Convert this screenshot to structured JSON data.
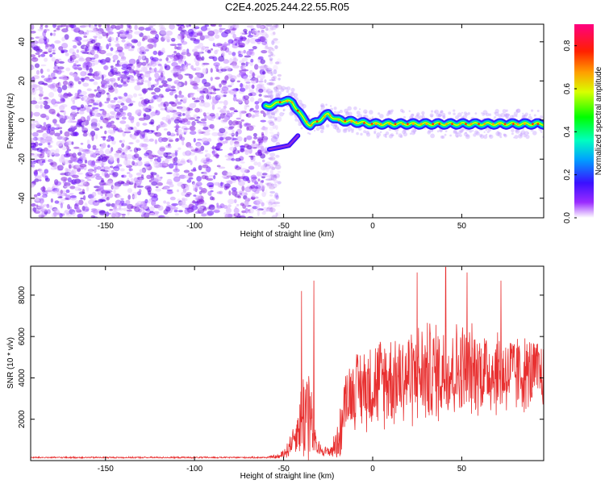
{
  "figure": {
    "title": "C2E4.2025.244.22.55.R05"
  },
  "chart_data": [
    {
      "type": "heatmap",
      "xlabel": "Height of straight line (km)",
      "ylabel": "Frequency (Hz)",
      "xlim": [
        -192,
        96
      ],
      "ylim": [
        -50,
        49
      ],
      "xticks": [
        -150,
        -100,
        -50,
        0,
        50
      ],
      "yticks": [
        -40,
        -20,
        0,
        20,
        40
      ],
      "noise_region_km": [
        -192,
        -55
      ],
      "clear_region_km": [
        -55,
        -60
      ],
      "ridge": {
        "description_points_x": [
          -60,
          -55,
          -50,
          -45,
          -40,
          -35,
          -30,
          -25,
          -20,
          -10,
          0,
          20,
          40,
          60,
          80,
          95
        ],
        "description_points_y": [
          7,
          8,
          10,
          9,
          2,
          -3,
          0,
          3,
          0,
          -1,
          -2,
          -2,
          -2,
          -2,
          -2,
          -2
        ]
      },
      "lower_branch": {
        "x": [
          -58,
          -52,
          -47,
          -42
        ],
        "y": [
          -15,
          -14,
          -13,
          -8
        ]
      },
      "colorbar": {
        "label": "Normalized spectral amplitude",
        "range": [
          0.0,
          0.9
        ],
        "ticks": [
          0.0,
          0.2,
          0.4,
          0.6,
          0.8
        ],
        "tick_labels": [
          "0.0",
          "0.2",
          "0.4",
          "0.6",
          "0.8"
        ]
      }
    },
    {
      "type": "line",
      "xlabel": "Height of straight line (km)",
      "ylabel": "SNR (10 * v/v)",
      "xlim": [
        -192,
        96
      ],
      "ylim": [
        0,
        9400
      ],
      "xticks": [
        -150,
        -100,
        -50,
        0,
        50
      ],
      "yticks": [
        2000,
        4000,
        6000,
        8000
      ],
      "series_color": "#e83030",
      "envelope": {
        "x": [
          -192,
          -60,
          -52,
          -48,
          -45,
          -42,
          -40,
          -38,
          -36,
          -35,
          -33,
          -31,
          -28,
          -25,
          -22,
          -20,
          -18,
          -16,
          -15,
          -14,
          -10,
          -5,
          0,
          10,
          20,
          30,
          40,
          50,
          60,
          70,
          80,
          90,
          96
        ],
        "base": [
          150,
          150,
          200,
          500,
          1000,
          1500,
          2000,
          2400,
          2600,
          2000,
          900,
          600,
          500,
          400,
          600,
          900,
          1400,
          2600,
          3200,
          3200,
          3400,
          3600,
          3700,
          4000,
          4100,
          4200,
          4300,
          4400,
          4400,
          4300,
          4200,
          4200,
          4200
        ],
        "amp": [
          40,
          40,
          150,
          500,
          700,
          1200,
          2200,
          3200,
          3500,
          2500,
          1000,
          500,
          300,
          300,
          600,
          1000,
          1500,
          1500,
          1600,
          1800,
          2000,
          2300,
          2500,
          2600,
          2700,
          2800,
          2800,
          2600,
          2400,
          2400,
          2200,
          2000,
          1800
        ]
      },
      "peaks": [
        {
          "x": -40,
          "y": 8200
        },
        {
          "x": -33,
          "y": 8700
        },
        {
          "x": 25,
          "y": 9100
        },
        {
          "x": 41,
          "y": 9350
        },
        {
          "x": 53,
          "y": 9100
        },
        {
          "x": 72,
          "y": 8700
        }
      ]
    }
  ]
}
